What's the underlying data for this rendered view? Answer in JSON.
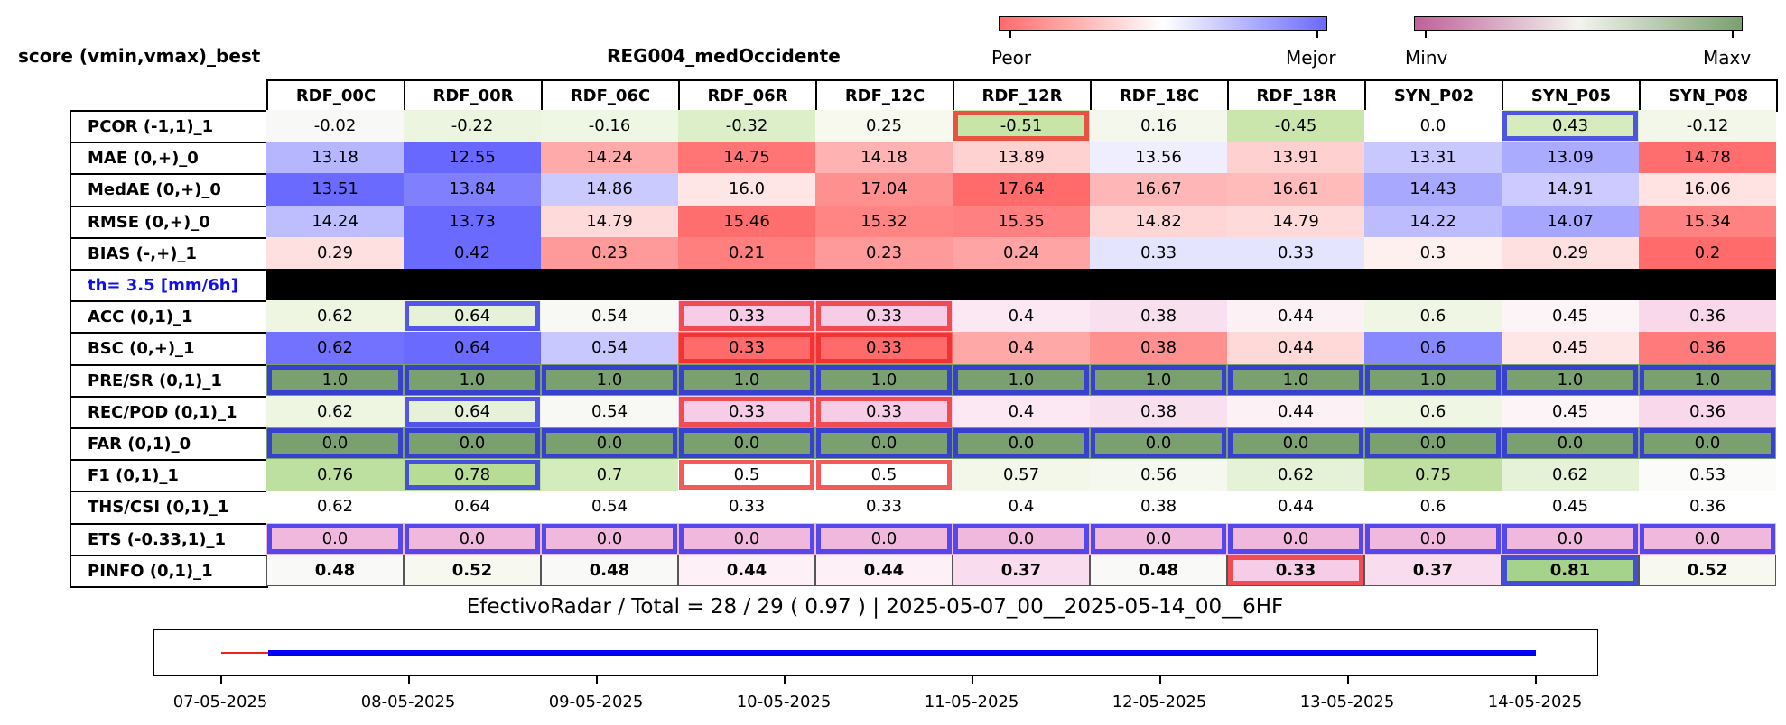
{
  "header": {
    "title_left": "score (vmin,vmax)_best",
    "title_center": "REG004_medOccidente"
  },
  "colorbars": {
    "diverging": {
      "left_label": "Peor",
      "right_label": "Mejor",
      "colors": [
        "#ff6a6a",
        "#ffffff",
        "#6a6aff"
      ]
    },
    "sequential": {
      "left_label": "Minv",
      "right_label": "Maxv",
      "colors": [
        "#c0609a",
        "#f4f4ee",
        "#7aa070"
      ]
    }
  },
  "chart_data": {
    "type": "table",
    "columns": [
      "RDF_00C",
      "RDF_00R",
      "RDF_06C",
      "RDF_06R",
      "RDF_12C",
      "RDF_12R",
      "RDF_18C",
      "RDF_18R",
      "SYN_P02",
      "SYN_P05",
      "SYN_P08"
    ],
    "rows": [
      {
        "label": "PCOR (-1,1)_1",
        "values": [
          "-0.02",
          "-0.22",
          "-0.16",
          "-0.32",
          "0.25",
          "-0.51",
          "0.16",
          "-0.45",
          "0.0",
          "0.43",
          "-0.12"
        ],
        "colors": [
          "#f8f8f6",
          "#ecf5e0",
          "#eef6e4",
          "#dcefc8",
          "#f7f9ef",
          "#c6e5a6",
          "#f4f8ec",
          "#cbe6ac",
          "#ffffff",
          "#d6ecbc",
          "#f2f7e9"
        ]
      },
      {
        "label": "MAE (0,+)_0",
        "values": [
          "13.18",
          "12.55",
          "14.24",
          "14.75",
          "14.18",
          "13.89",
          "13.56",
          "13.91",
          "13.31",
          "13.09",
          "14.78"
        ],
        "colors": [
          "#b6b6ff",
          "#6868ff",
          "#ffaaaa",
          "#ff7474",
          "#ffb2b2",
          "#ffd2d2",
          "#eeeeff",
          "#ffd0d0",
          "#c8c8ff",
          "#aaaaff",
          "#ff6e6e"
        ]
      },
      {
        "label": "MedAE (0,+)_0",
        "values": [
          "13.51",
          "13.84",
          "14.86",
          "16.0",
          "17.04",
          "17.64",
          "16.67",
          "16.61",
          "14.43",
          "14.91",
          "16.06"
        ],
        "colors": [
          "#6a6aff",
          "#8080ff",
          "#cacaff",
          "#ffe6e6",
          "#ff9090",
          "#ff6a6a",
          "#ffb6b6",
          "#ffbaba",
          "#a8a8ff",
          "#cccaff",
          "#ffe2e2"
        ]
      },
      {
        "label": "RMSE (0,+)_0",
        "values": [
          "14.24",
          "13.73",
          "14.79",
          "15.46",
          "15.32",
          "15.35",
          "14.82",
          "14.79",
          "14.22",
          "14.07",
          "15.34"
        ],
        "colors": [
          "#bebeff",
          "#6a6aff",
          "#ffdada",
          "#ff6e6e",
          "#ff8484",
          "#ff8080",
          "#ffd6d6",
          "#ffdada",
          "#bcbcff",
          "#a6a6ff",
          "#ff8282"
        ]
      },
      {
        "label": "BIAS (-,+)_1",
        "values": [
          "0.29",
          "0.42",
          "0.23",
          "0.21",
          "0.23",
          "0.24",
          "0.33",
          "0.33",
          "0.3",
          "0.29",
          "0.2"
        ],
        "colors": [
          "#ffe0e0",
          "#6a6aff",
          "#ff9a9a",
          "#ff7e7e",
          "#ff9a9a",
          "#ffa4a4",
          "#e4e4ff",
          "#e4e4ff",
          "#fff0f0",
          "#ffe0e0",
          "#ff6a6a"
        ]
      },
      {
        "label": "th= 3.5 [mm/6h]",
        "separator": true
      },
      {
        "label": "ACC (0,1)_1",
        "values": [
          "0.62",
          "0.64",
          "0.54",
          "0.33",
          "0.33",
          "0.4",
          "0.38",
          "0.44",
          "0.6",
          "0.45",
          "0.36"
        ],
        "colors": [
          "#eef6e2",
          "#e6f2d8",
          "#f8f8f4",
          "#f6cce6",
          "#f6cce6",
          "#fbe8f2",
          "#f9e0ee",
          "#fcf2f6",
          "#eff7e4",
          "#fcf4f7",
          "#f8d8ea"
        ]
      },
      {
        "label": "BSC (0,+)_1",
        "values": [
          "0.62",
          "0.64",
          "0.54",
          "0.33",
          "0.33",
          "0.4",
          "0.38",
          "0.44",
          "0.6",
          "0.45",
          "0.36"
        ],
        "colors": [
          "#7272ff",
          "#6a6aff",
          "#c8c8ff",
          "#ff6a6a",
          "#ff6a6a",
          "#ffa8a8",
          "#ff9090",
          "#ffd8d8",
          "#8888ff",
          "#ffe6e6",
          "#ff7a7a"
        ]
      },
      {
        "label": "PRE/SR (0,1)_1",
        "values": [
          "1.0",
          "1.0",
          "1.0",
          "1.0",
          "1.0",
          "1.0",
          "1.0",
          "1.0",
          "1.0",
          "1.0",
          "1.0"
        ],
        "colors": [
          "#7aa070",
          "#7aa070",
          "#7aa070",
          "#7aa070",
          "#7aa070",
          "#7aa070",
          "#7aa070",
          "#7aa070",
          "#7aa070",
          "#7aa070",
          "#7aa070"
        ]
      },
      {
        "label": "REC/POD (0,1)_1",
        "values": [
          "0.62",
          "0.64",
          "0.54",
          "0.33",
          "0.33",
          "0.4",
          "0.38",
          "0.44",
          "0.6",
          "0.45",
          "0.36"
        ],
        "colors": [
          "#eef6e2",
          "#e6f2d8",
          "#f8f8f4",
          "#f6cce6",
          "#f6cce6",
          "#fbe8f2",
          "#f9e0ee",
          "#fcf2f6",
          "#eff7e4",
          "#fcf4f7",
          "#f8d8ea"
        ]
      },
      {
        "label": "FAR (0,1)_0",
        "values": [
          "0.0",
          "0.0",
          "0.0",
          "0.0",
          "0.0",
          "0.0",
          "0.0",
          "0.0",
          "0.0",
          "0.0",
          "0.0"
        ],
        "colors": [
          "#7aa070",
          "#7aa070",
          "#7aa070",
          "#7aa070",
          "#7aa070",
          "#7aa070",
          "#7aa070",
          "#7aa070",
          "#7aa070",
          "#7aa070",
          "#7aa070"
        ]
      },
      {
        "label": "F1 (0,1)_1",
        "values": [
          "0.76",
          "0.78",
          "0.7",
          "0.5",
          "0.5",
          "0.57",
          "0.56",
          "0.62",
          "0.75",
          "0.62",
          "0.53"
        ],
        "colors": [
          "#bde0a0",
          "#b6dc96",
          "#d4ebbc",
          "#ffffff",
          "#ffffff",
          "#f2f7ea",
          "#f4f8ee",
          "#e6f2d8",
          "#c0e0a2",
          "#e6f2d8",
          "#fbfbf9"
        ]
      },
      {
        "label": "THS/CSI (0,1)_1",
        "values": [
          "0.62",
          "0.64",
          "0.54",
          "0.33",
          "0.33",
          "0.4",
          "0.38",
          "0.44",
          "0.6",
          "0.45",
          "0.36"
        ],
        "colors": [
          "#ffffff",
          "#ffffff",
          "#ffffff",
          "#ffffff",
          "#ffffff",
          "#ffffff",
          "#ffffff",
          "#ffffff",
          "#ffffff",
          "#ffffff",
          "#ffffff"
        ]
      },
      {
        "label": "ETS (-0.33,1)_1",
        "values": [
          "0.0",
          "0.0",
          "0.0",
          "0.0",
          "0.0",
          "0.0",
          "0.0",
          "0.0",
          "0.0",
          "0.0",
          "0.0"
        ],
        "colors": [
          "#f0b8dc",
          "#f0b8dc",
          "#f0b8dc",
          "#f0b8dc",
          "#f0b8dc",
          "#f0b8dc",
          "#f0b8dc",
          "#f0b8dc",
          "#f0b8dc",
          "#f0b8dc",
          "#f0b8dc"
        ]
      },
      {
        "label": "PINFO (0,1)_1",
        "bold": true,
        "values": [
          "0.48",
          "0.52",
          "0.48",
          "0.44",
          "0.44",
          "0.37",
          "0.48",
          "0.33",
          "0.37",
          "0.81",
          "0.52"
        ],
        "colors": [
          "#f9f9f7",
          "#f7f9f1",
          "#f9f9f7",
          "#fdf0f6",
          "#fdf0f6",
          "#f9dced",
          "#f9f9f7",
          "#f6cce6",
          "#f9dced",
          "#a6d38c",
          "#f7f9f1"
        ]
      }
    ],
    "highlights": [
      {
        "row": 0,
        "col": 5,
        "kind": "worst"
      },
      {
        "row": 0,
        "col": 9,
        "kind": "best"
      },
      {
        "row": 6,
        "col": 1,
        "kind": "best"
      },
      {
        "row": 6,
        "col": 3,
        "kind": "worst"
      },
      {
        "row": 6,
        "col": 4,
        "kind": "worst"
      },
      {
        "row": 7,
        "col": 3,
        "kind": "worst"
      },
      {
        "row": 7,
        "col": 4,
        "kind": "worst"
      },
      {
        "row": 9,
        "col": 1,
        "kind": "best"
      },
      {
        "row": 9,
        "col": 3,
        "kind": "worst"
      },
      {
        "row": 9,
        "col": 4,
        "kind": "worst"
      },
      {
        "row": 11,
        "col": 1,
        "kind": "best"
      },
      {
        "row": 11,
        "col": 3,
        "kind": "worst"
      },
      {
        "row": 11,
        "col": 4,
        "kind": "worst"
      },
      {
        "row": 14,
        "col": 7,
        "kind": "worst"
      },
      {
        "row": 14,
        "col": 9,
        "kind": "best"
      }
    ],
    "full_best_rows": [
      8,
      10,
      13
    ],
    "highlight_colors": {
      "best": "#2222ee",
      "worst": "#ee2222"
    }
  },
  "footer": {
    "summary": "EfectivoRadar / Total  =  28 / 29 ( 0.97 ) | 2025-05-07_00__2025-05-14_00__6HF"
  },
  "timeline": {
    "ticks": [
      "07-05-2025",
      "08-05-2025",
      "09-05-2025",
      "10-05-2025",
      "11-05-2025",
      "12-05-2025",
      "13-05-2025",
      "14-05-2025"
    ],
    "missing_segment": {
      "start_day": 0.0,
      "end_day": 0.25,
      "color": "#ee2222"
    },
    "available_segment": {
      "start_day": 0.25,
      "end_day": 7.0,
      "color": "#0000ee"
    }
  }
}
